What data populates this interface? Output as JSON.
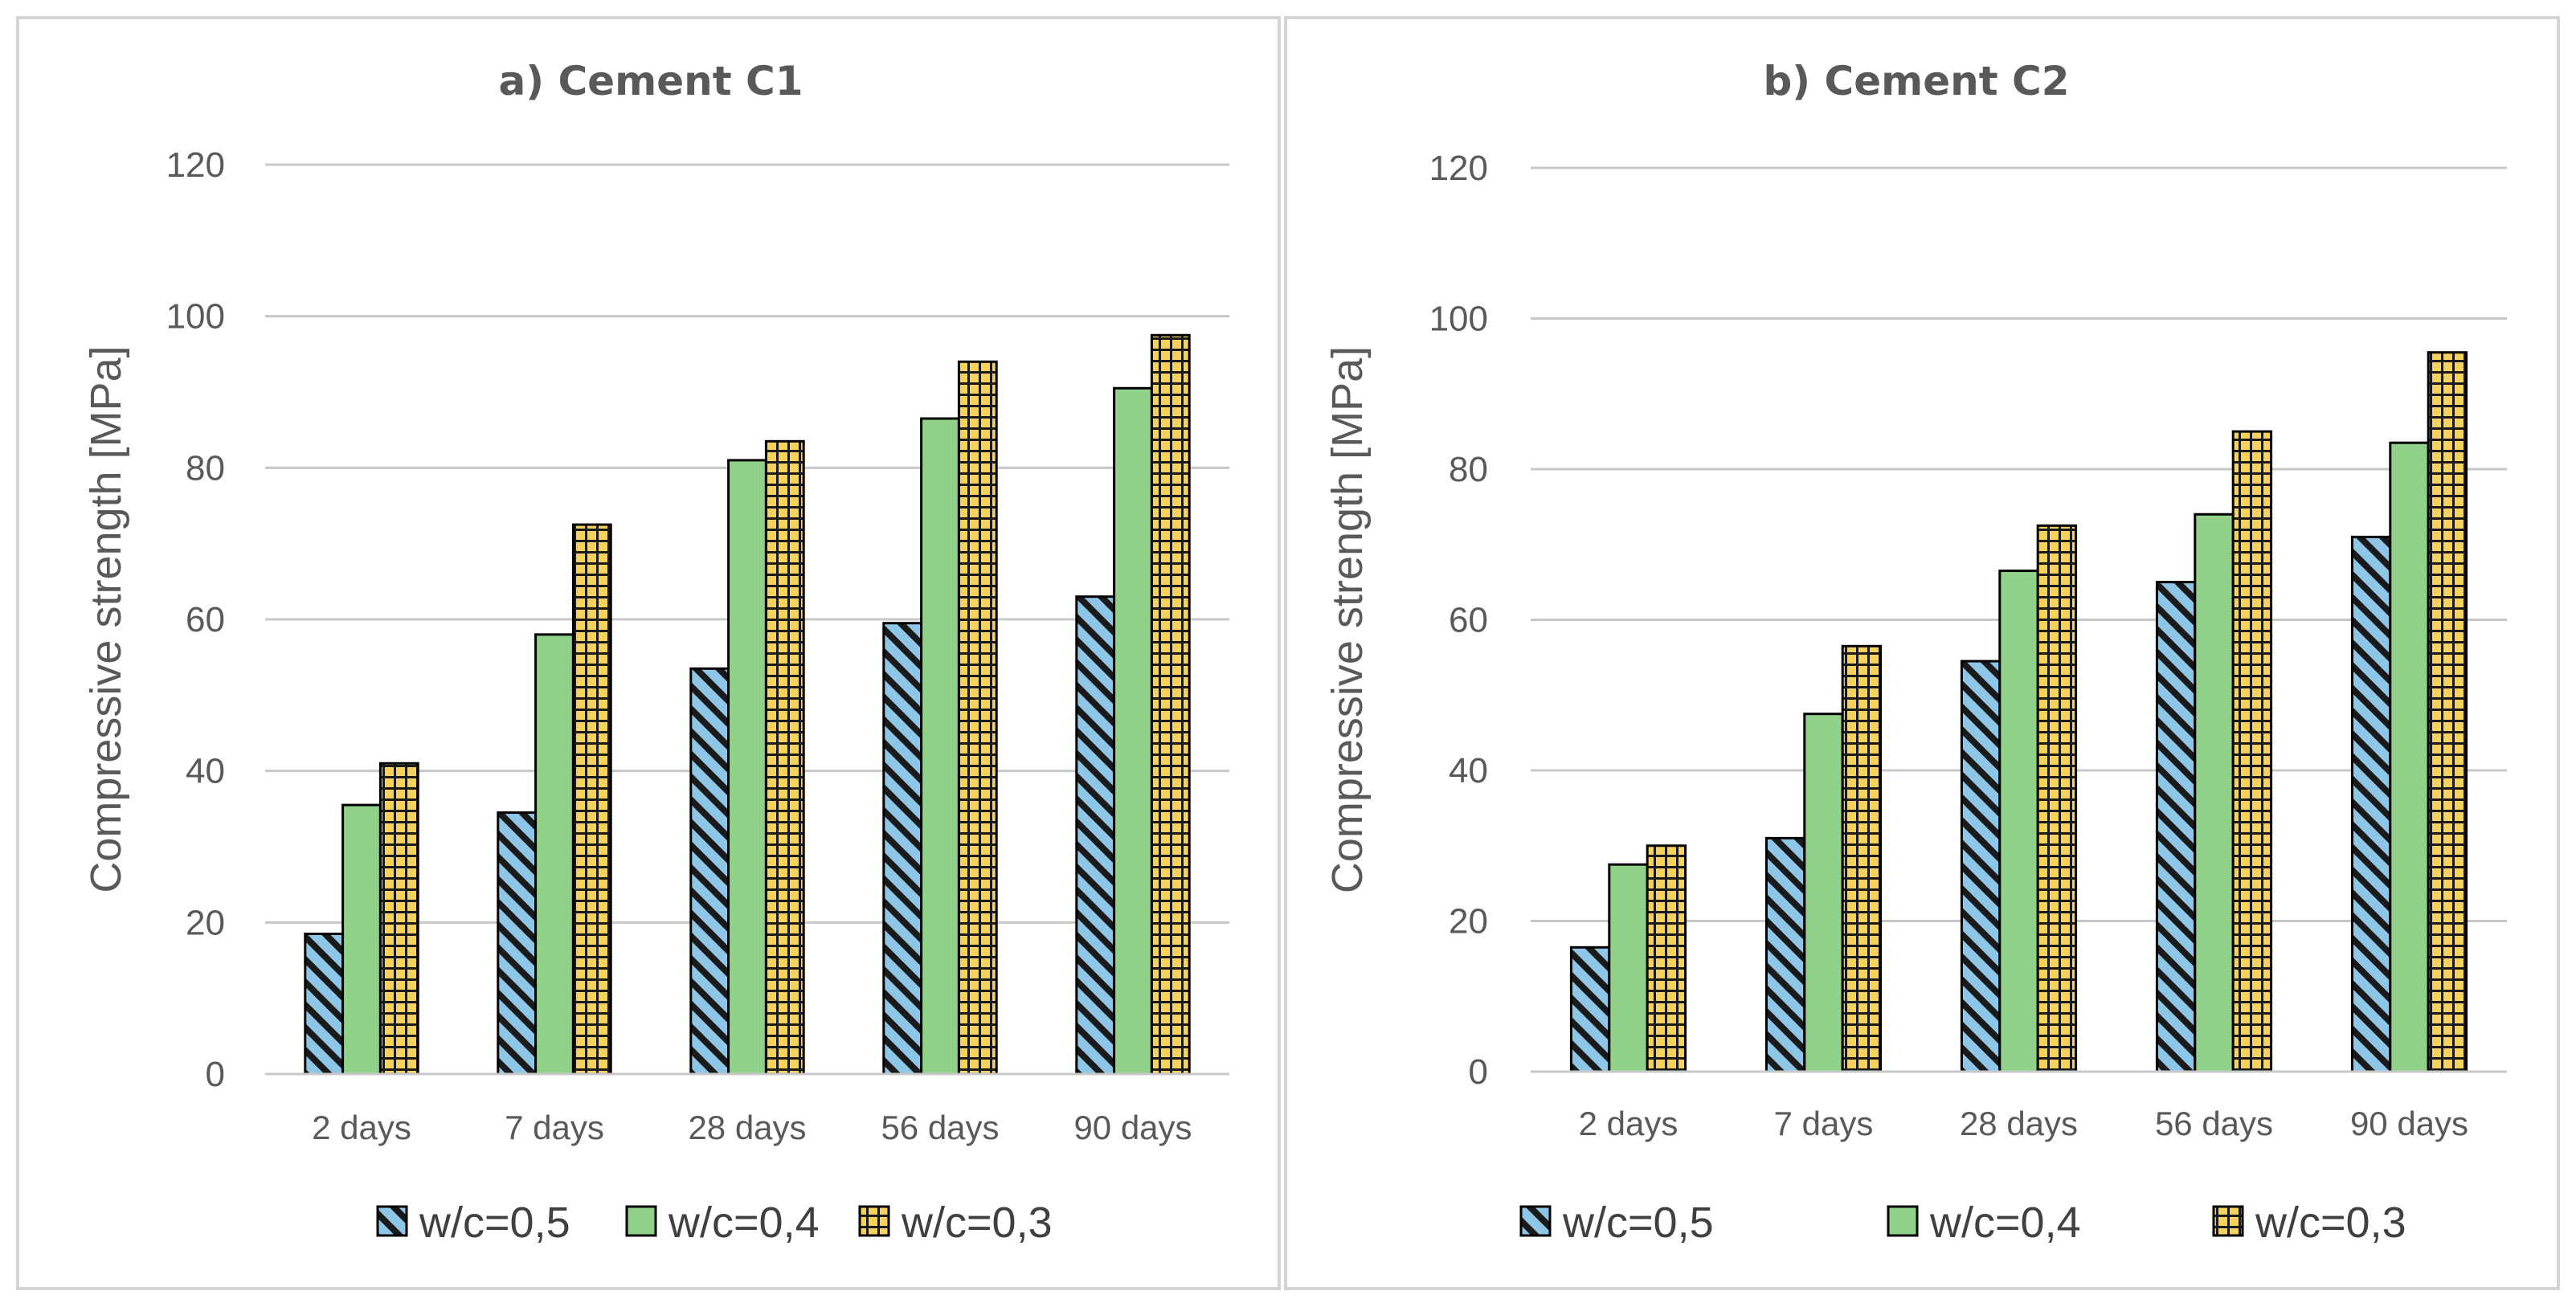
{
  "chart_data": [
    {
      "type": "bar",
      "title": "a) Cement C1",
      "xlabel": "",
      "ylabel": "Compressive strength [MPa]",
      "ylim": [
        0,
        120
      ],
      "yticks": [
        0,
        20,
        40,
        60,
        80,
        100,
        120
      ],
      "grid": true,
      "legend_position": "bottom",
      "categories": [
        "2 days",
        "7 days",
        "28 days",
        "56 days",
        "90 days"
      ],
      "series": [
        {
          "name": "w/c=0,5",
          "pattern": "diagonal-hatch",
          "color": "#8ec6e8",
          "values": [
            18.5,
            34.5,
            53.5,
            59.5,
            63
          ]
        },
        {
          "name": "w/c=0,4",
          "pattern": "solid",
          "color": "#92d18a",
          "values": [
            35.5,
            58,
            81,
            86.5,
            90.5
          ]
        },
        {
          "name": "w/c=0,3",
          "pattern": "grid",
          "color": "#f7d25a",
          "values": [
            41,
            72.5,
            83.5,
            94,
            97.5
          ]
        }
      ]
    },
    {
      "type": "bar",
      "title": "b) Cement C2",
      "xlabel": "",
      "ylabel": "Compressive strength [MPa]",
      "ylim": [
        0,
        120
      ],
      "yticks": [
        0,
        20,
        40,
        60,
        80,
        100,
        120
      ],
      "grid": true,
      "legend_position": "bottom",
      "categories": [
        "2 days",
        "7 days",
        "28 days",
        "56 days",
        "90 days"
      ],
      "series": [
        {
          "name": "w/c=0,5",
          "pattern": "diagonal-hatch",
          "color": "#8ec6e8",
          "values": [
            16.5,
            31,
            54.5,
            65,
            71
          ]
        },
        {
          "name": "w/c=0,4",
          "pattern": "solid",
          "color": "#92d18a",
          "values": [
            27.5,
            47.5,
            66.5,
            74,
            83.5
          ]
        },
        {
          "name": "w/c=0,3",
          "pattern": "grid",
          "color": "#f7d25a",
          "values": [
            30,
            56.5,
            72.5,
            85,
            95.5
          ]
        }
      ]
    }
  ]
}
